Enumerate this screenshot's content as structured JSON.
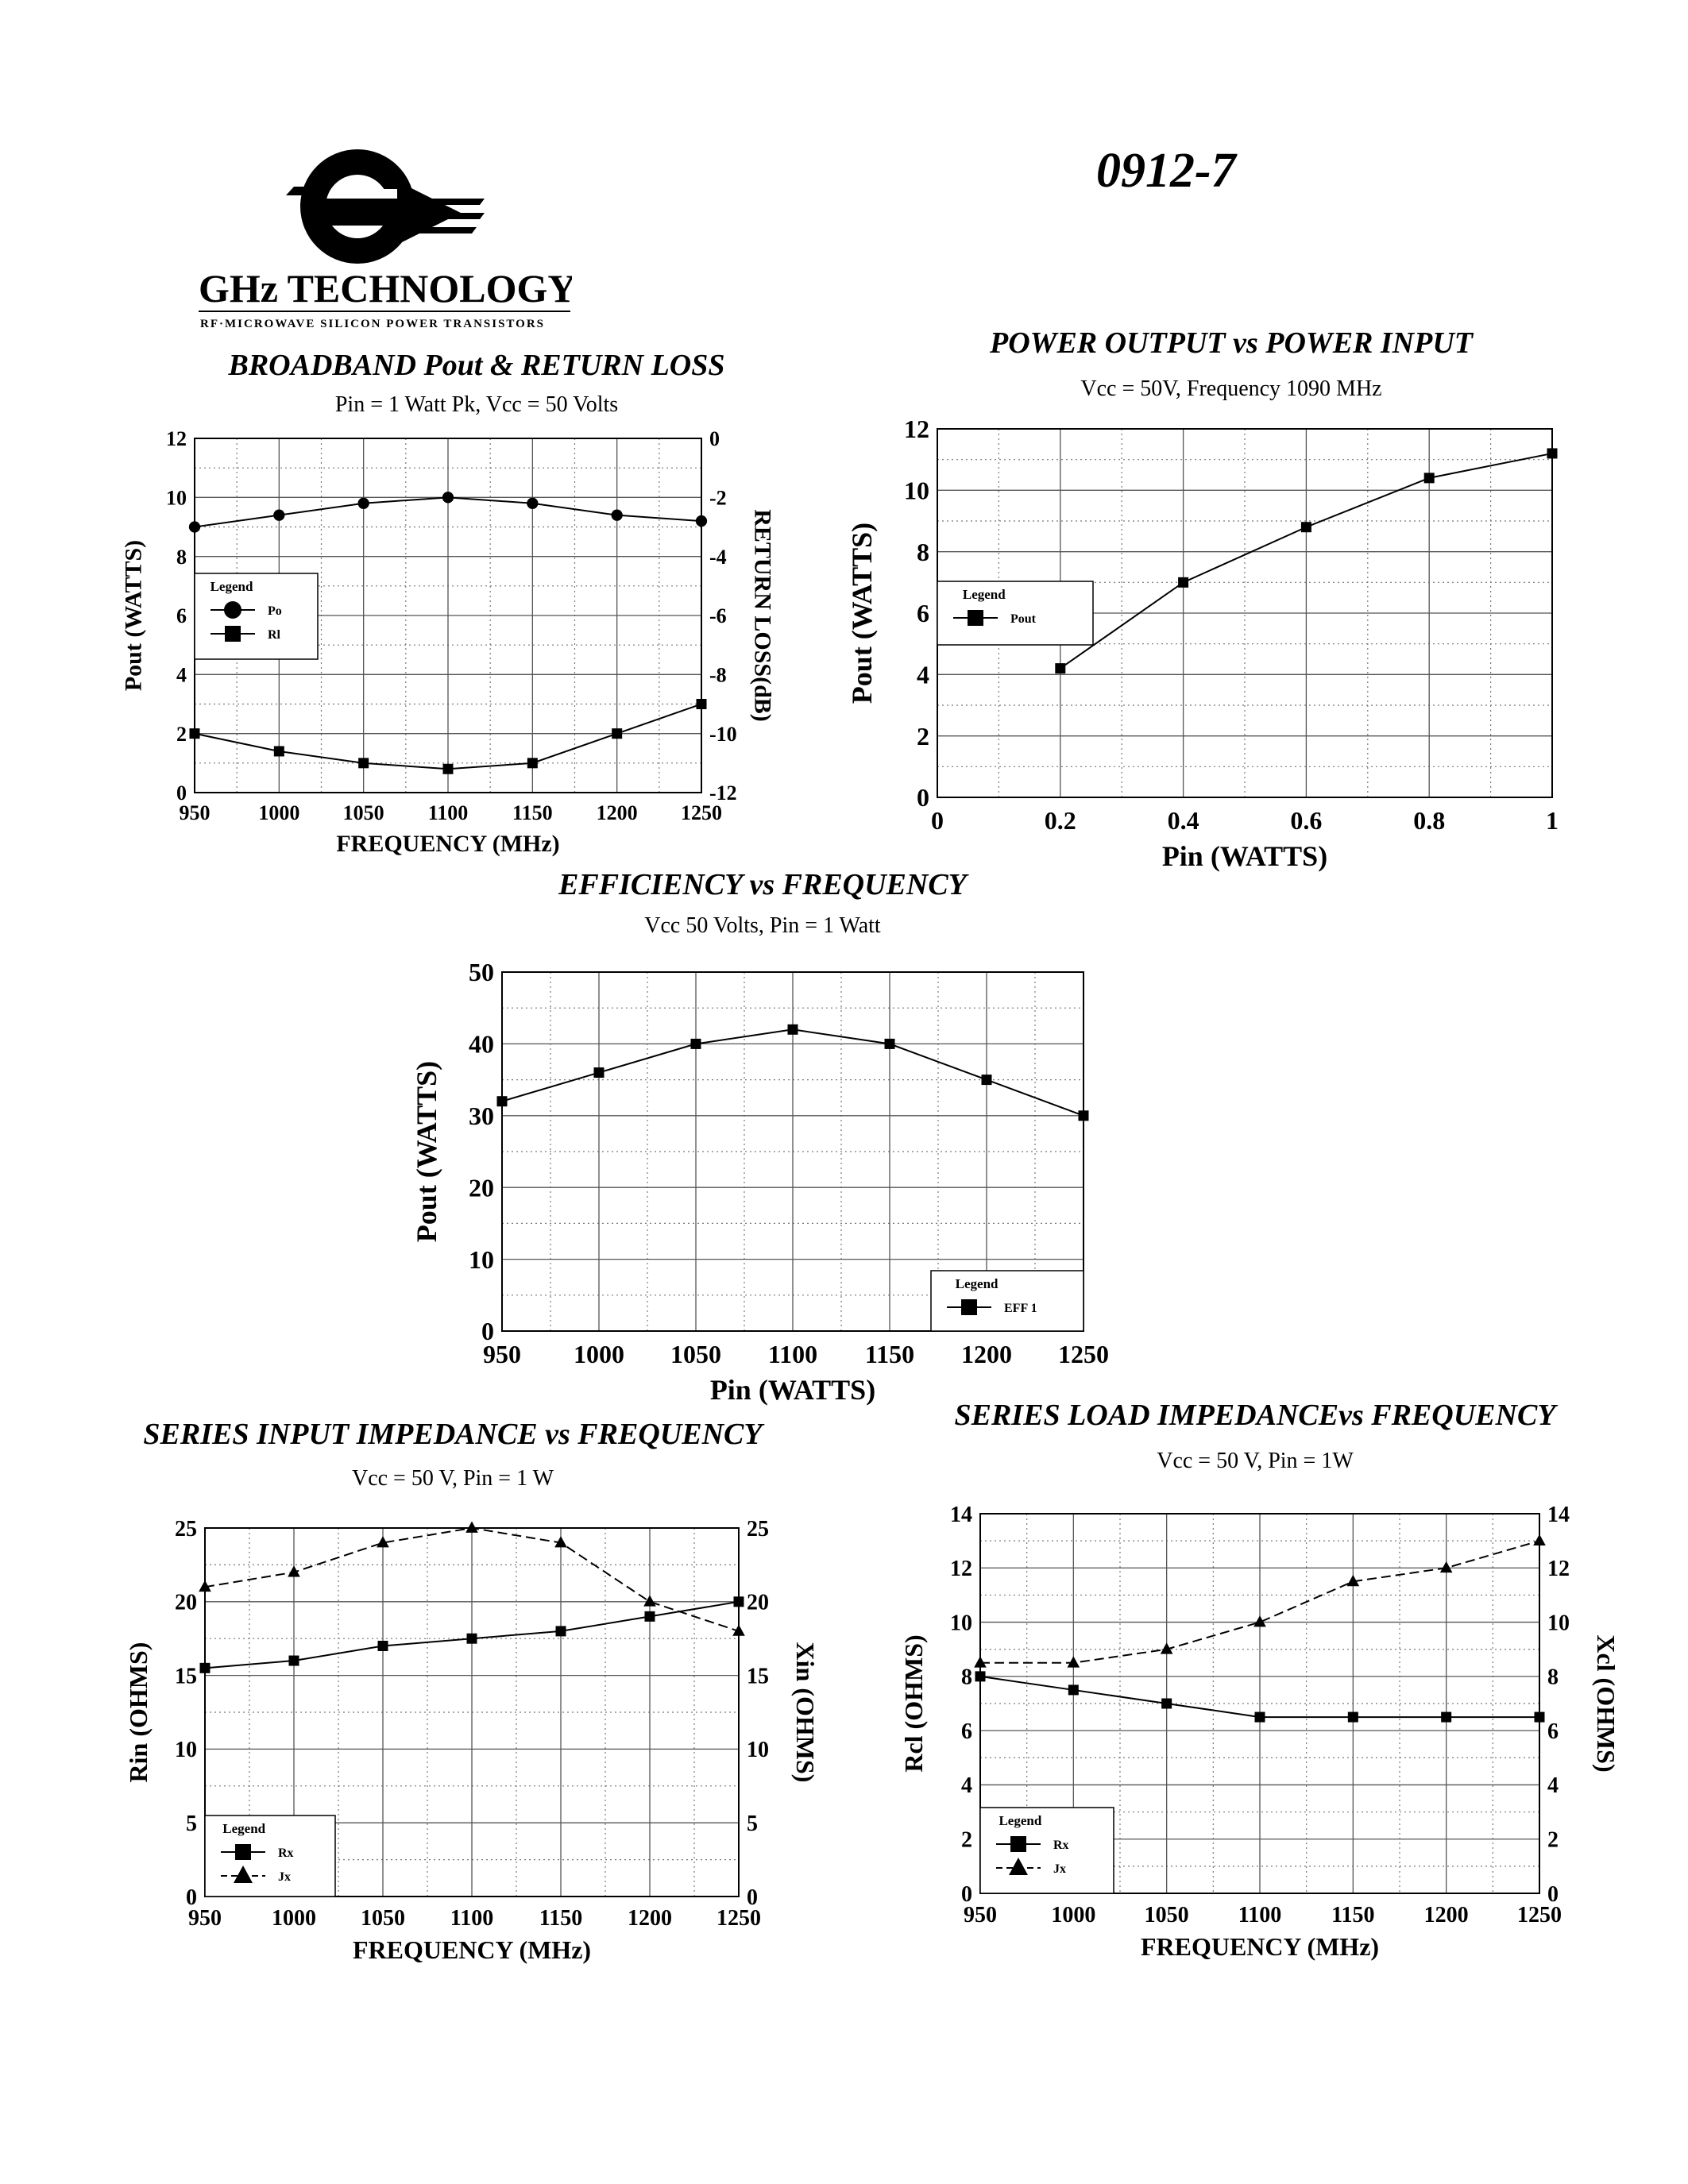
{
  "header": {
    "company_name": "GHz TECHNOLOGY",
    "company_tagline": "RF·MICROWAVE SILICON POWER TRANSISTORS",
    "part_number": "0912-7"
  },
  "chart_data": [
    {
      "id": "broadband",
      "type": "line",
      "title": "BROADBAND Pout & RETURN LOSS",
      "subtitle": "Pin = 1 Watt Pk, Vcc = 50 Volts",
      "xlabel": "FREQUENCY (MHz)",
      "ylabel": "Pout (WATTS)",
      "ylabel_right": "RETURN LOSS(dB)",
      "xlim": [
        950,
        1250
      ],
      "ylim": [
        0,
        12
      ],
      "ylim_right": [
        -12,
        0
      ],
      "x_ticks": [
        950,
        1000,
        1050,
        1100,
        1150,
        1200,
        1250
      ],
      "y_ticks": [
        0,
        2,
        4,
        6,
        8,
        10,
        12
      ],
      "y_right_ticks": [
        -12,
        -10,
        -8,
        -6,
        -4,
        -2,
        0
      ],
      "legend": {
        "title": "Legend",
        "position": "left-middle"
      },
      "series": [
        {
          "name": "Po",
          "marker": "circle",
          "axis": "left",
          "x": [
            950,
            1000,
            1050,
            1100,
            1150,
            1200,
            1250
          ],
          "y": [
            9.0,
            9.4,
            9.8,
            10.0,
            9.8,
            9.4,
            9.2
          ]
        },
        {
          "name": "Rl",
          "marker": "square",
          "axis": "right",
          "x": [
            950,
            1000,
            1050,
            1100,
            1150,
            1200,
            1250
          ],
          "y": [
            -10.0,
            -10.6,
            -11.0,
            -11.2,
            -11.0,
            -10.0,
            -9.0
          ]
        }
      ]
    },
    {
      "id": "pout-pin",
      "type": "line",
      "title": "POWER OUTPUT vs POWER INPUT",
      "subtitle": "Vcc = 50V,  Frequency 1090 MHz",
      "xlabel": "Pin (WATTS)",
      "ylabel": "Pout (WATTS)",
      "xlim": [
        0,
        1
      ],
      "ylim": [
        0,
        12
      ],
      "x_ticks": [
        0,
        0.2,
        0.4,
        0.6,
        0.8,
        1
      ],
      "y_ticks": [
        0,
        2,
        4,
        6,
        8,
        10,
        12
      ],
      "legend": {
        "title": "Legend",
        "position": "left-middle"
      },
      "series": [
        {
          "name": "Pout",
          "marker": "square",
          "axis": "left",
          "x": [
            0.2,
            0.4,
            0.6,
            0.8,
            1.0
          ],
          "y": [
            4.2,
            7.0,
            8.8,
            10.4,
            11.2
          ]
        }
      ]
    },
    {
      "id": "efficiency",
      "type": "line",
      "title": "EFFICIENCY vs FREQUENCY",
      "subtitle": "Vcc  50 Volts, Pin = 1 Watt",
      "xlabel": "Pin  (WATTS)",
      "ylabel": "Pout  (WATTS)",
      "xlim": [
        950,
        1250
      ],
      "ylim": [
        0,
        50
      ],
      "x_ticks": [
        950,
        1000,
        1050,
        1100,
        1150,
        1200,
        1250
      ],
      "y_ticks": [
        0,
        10,
        20,
        30,
        40,
        50
      ],
      "legend": {
        "title": "Legend",
        "position": "bottom-right"
      },
      "series": [
        {
          "name": "EFF 1",
          "marker": "square",
          "axis": "left",
          "x": [
            950,
            1000,
            1050,
            1100,
            1150,
            1200,
            1250
          ],
          "y": [
            32,
            36,
            40,
            42,
            40,
            35,
            30
          ]
        }
      ]
    },
    {
      "id": "input-impedance",
      "type": "line",
      "title": "SERIES INPUT IMPEDANCE vs FREQUENCY",
      "subtitle": "Vcc = 50 V, Pin = 1 W",
      "xlabel": "FREQUENCY (MHz)",
      "ylabel": "Rin (OHMS)",
      "ylabel_right": "Xin  (OHMS)",
      "xlim": [
        950,
        1250
      ],
      "ylim": [
        0,
        25
      ],
      "ylim_right": [
        0,
        25
      ],
      "x_ticks": [
        950,
        1000,
        1050,
        1100,
        1150,
        1200,
        1250
      ],
      "y_ticks": [
        0,
        5,
        10,
        15,
        20,
        25
      ],
      "y_right_ticks": [
        0,
        5,
        10,
        15,
        20,
        25
      ],
      "legend": {
        "title": "Legend",
        "position": "bottom-left"
      },
      "series": [
        {
          "name": "Rx",
          "marker": "square",
          "axis": "left",
          "x": [
            950,
            1000,
            1050,
            1100,
            1150,
            1200,
            1250
          ],
          "y": [
            15.5,
            16.0,
            17.0,
            17.5,
            18.0,
            19.0,
            20.0
          ]
        },
        {
          "name": "Jx",
          "marker": "triangle",
          "dashed": true,
          "axis": "right",
          "x": [
            950,
            1000,
            1050,
            1100,
            1150,
            1200,
            1250
          ],
          "y": [
            21.0,
            22.0,
            24.0,
            25.0,
            24.0,
            20.0,
            18.0
          ]
        }
      ]
    },
    {
      "id": "load-impedance",
      "type": "line",
      "title": "SERIES LOAD IMPEDANCEvs FREQUENCY",
      "subtitle": "Vcc = 50 V, Pin = 1W",
      "xlabel": "FREQUENCY (MHz)",
      "ylabel": "Rcl  (OHMS)",
      "ylabel_right": "Xcl (OHMS)",
      "xlim": [
        950,
        1250
      ],
      "ylim": [
        0,
        14
      ],
      "ylim_right": [
        0,
        14
      ],
      "x_ticks": [
        950,
        1000,
        1050,
        1100,
        1150,
        1200,
        1250
      ],
      "y_ticks": [
        0,
        2,
        4,
        6,
        8,
        10,
        12,
        14
      ],
      "y_right_ticks": [
        0,
        2,
        4,
        6,
        8,
        10,
        12,
        14
      ],
      "legend": {
        "title": "Legend",
        "position": "bottom-left"
      },
      "series": [
        {
          "name": "Rx",
          "marker": "square",
          "axis": "left",
          "x": [
            950,
            1000,
            1050,
            1100,
            1150,
            1200,
            1250
          ],
          "y": [
            8.0,
            7.5,
            7.0,
            6.5,
            6.5,
            6.5,
            6.5
          ]
        },
        {
          "name": "Jx",
          "marker": "triangle",
          "dashed": true,
          "axis": "right",
          "x": [
            950,
            1000,
            1050,
            1100,
            1150,
            1200,
            1250
          ],
          "y": [
            8.5,
            8.5,
            9.0,
            10.0,
            11.5,
            12.0,
            13.0
          ]
        }
      ]
    }
  ]
}
